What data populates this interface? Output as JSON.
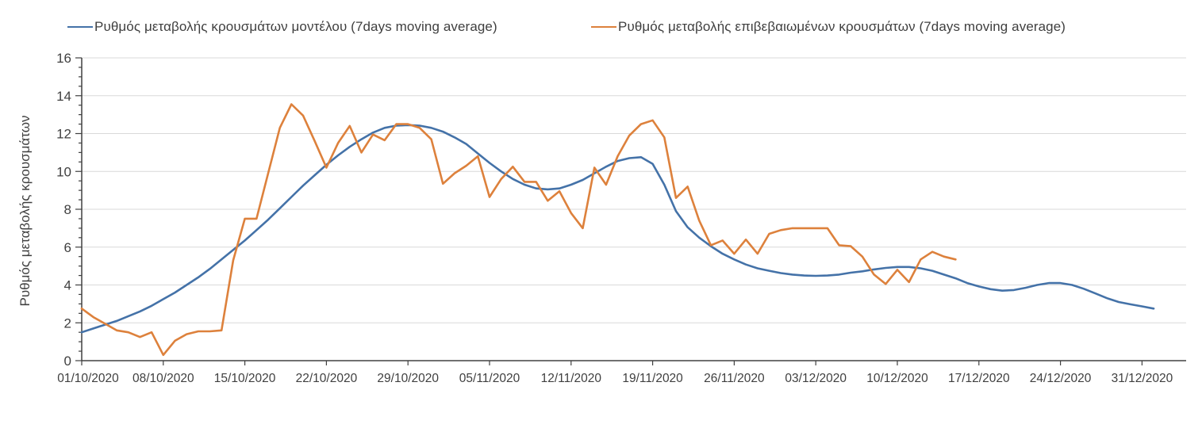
{
  "legend": {
    "model_label": "Ρυθμός μεταβολής κρουσμάτων μοντέλου (7days moving average)",
    "confirmed_label": "Ρυθμός μεταβολής επιβεβαιωμένων κρουσμάτων (7days moving average)"
  },
  "colors": {
    "model_line": "#4472a8",
    "confirmed_line": "#dd813c",
    "axis": "#404040",
    "gridline": "#d9d9d9",
    "text": "#3f3f3f"
  },
  "chart_data": {
    "type": "line",
    "title": "",
    "xlabel": "",
    "ylabel": "Ρυθμός μεταβολής κρουσμάτων",
    "ylim": [
      0,
      16
    ],
    "y_tick_step": 2,
    "y_minor_tick_step": 0.5,
    "grid": "horizontal-major-only",
    "legend_position": "top",
    "x_start_date": "01/10/2020",
    "x_tick_interval_days": 7,
    "x_tick_labels": [
      "01/10/2020",
      "08/10/2020",
      "15/10/2020",
      "22/10/2020",
      "29/10/2020",
      "05/11/2020",
      "12/11/2020",
      "19/11/2020",
      "26/11/2020",
      "03/12/2020",
      "10/12/2020",
      "17/12/2020",
      "24/12/2020",
      "31/12/2020"
    ],
    "series": [
      {
        "name": "Ρυθμός μεταβολής κρουσμάτων μοντέλου (7days moving average)",
        "color": "#4472a8",
        "start_date": "01/10/2020",
        "end_date": "01/01/2021",
        "values": [
          1.5,
          1.7,
          1.9,
          2.1,
          2.35,
          2.6,
          2.9,
          3.25,
          3.6,
          4.0,
          4.4,
          4.85,
          5.35,
          5.85,
          6.35,
          6.9,
          7.45,
          8.05,
          8.65,
          9.25,
          9.8,
          10.35,
          10.85,
          11.3,
          11.7,
          12.05,
          12.3,
          12.42,
          12.45,
          12.42,
          12.3,
          12.1,
          11.8,
          11.45,
          10.95,
          10.45,
          10.0,
          9.6,
          9.3,
          9.1,
          9.05,
          9.1,
          9.3,
          9.55,
          9.9,
          10.25,
          10.55,
          10.7,
          10.75,
          10.4,
          9.3,
          7.9,
          7.05,
          6.5,
          6.05,
          5.65,
          5.35,
          5.08,
          4.88,
          4.75,
          4.63,
          4.55,
          4.5,
          4.48,
          4.5,
          4.55,
          4.65,
          4.72,
          4.82,
          4.9,
          4.95,
          4.95,
          4.88,
          4.75,
          4.55,
          4.35,
          4.1,
          3.92,
          3.78,
          3.7,
          3.73,
          3.85,
          4.0,
          4.1,
          4.1,
          4.0,
          3.8,
          3.55,
          3.3,
          3.1,
          2.98,
          2.87,
          2.75
        ]
      },
      {
        "name": "Ρυθμός μεταβολής επιβεβαιωμένων κρουσμάτων (7days moving average)",
        "color": "#dd813c",
        "start_date": "01/10/2020",
        "end_date": "15/12/2020",
        "values": [
          2.75,
          2.3,
          1.95,
          1.6,
          1.5,
          1.25,
          1.5,
          0.3,
          1.05,
          1.4,
          1.55,
          1.55,
          1.6,
          5.3,
          7.5,
          7.5,
          9.9,
          12.3,
          13.55,
          12.95,
          11.6,
          10.2,
          11.5,
          12.4,
          11.0,
          11.95,
          11.65,
          12.5,
          12.5,
          12.3,
          11.7,
          9.35,
          9.9,
          10.3,
          10.8,
          8.65,
          9.6,
          10.25,
          9.45,
          9.45,
          8.45,
          8.95,
          7.8,
          7.0,
          10.2,
          9.3,
          10.8,
          11.9,
          12.5,
          12.7,
          11.8,
          8.6,
          9.2,
          7.4,
          6.1,
          6.35,
          5.65,
          6.4,
          5.65,
          6.7,
          6.9,
          7.0,
          7.0,
          7.0,
          7.0,
          6.1,
          6.05,
          5.5,
          4.55,
          4.05,
          4.8,
          4.15,
          5.35,
          5.75,
          5.5,
          5.35
        ]
      }
    ]
  }
}
